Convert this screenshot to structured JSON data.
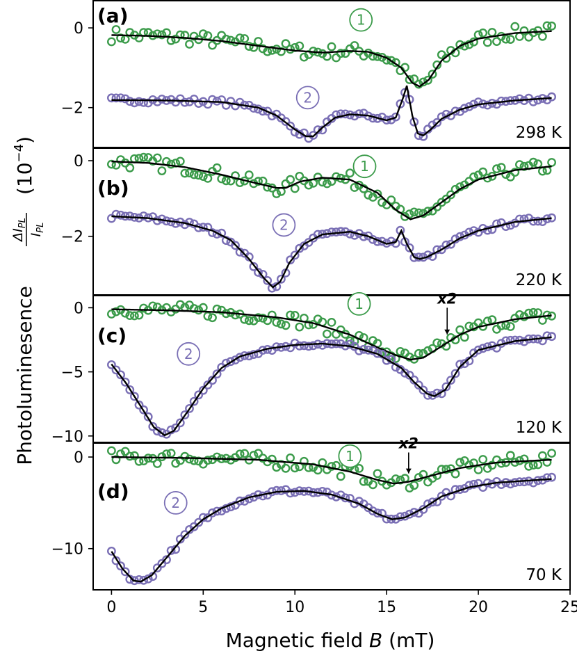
{
  "colors": {
    "green": "#3b9b4a",
    "purple": "#7a6fb5",
    "fit": "#000000"
  },
  "chart_data": {
    "type": "scatter",
    "xlabel": "Magnetic field B (mT)",
    "ylabel": "Photoluminesence ΔI_PL/I_PL (10^-4)",
    "xlim": [
      -1,
      25
    ],
    "xticks": [
      0,
      5,
      10,
      15,
      20,
      25
    ],
    "panels": [
      {
        "letter": "(a)",
        "temperature": "298 K",
        "ylim": [
          -3.0,
          0.7
        ],
        "yticks": [
          0,
          -2
        ],
        "x2": false,
        "series": [
          {
            "name": "1",
            "color": "green",
            "fit": [
              [
                0,
                -0.18
              ],
              [
                2,
                -0.2
              ],
              [
                4,
                -0.25
              ],
              [
                6,
                -0.33
              ],
              [
                8,
                -0.45
              ],
              [
                10,
                -0.57
              ],
              [
                11.5,
                -0.62
              ],
              [
                13,
                -0.58
              ],
              [
                14,
                -0.6
              ],
              [
                15,
                -0.75
              ],
              [
                15.8,
                -1.0
              ],
              [
                16.4,
                -1.38
              ],
              [
                16.8,
                -1.47
              ],
              [
                17.3,
                -1.3
              ],
              [
                18,
                -0.82
              ],
              [
                19,
                -0.45
              ],
              [
                20,
                -0.27
              ],
              [
                22,
                -0.13
              ],
              [
                24,
                -0.08
              ]
            ]
          },
          {
            "name": "2",
            "color": "purple",
            "fit": [
              [
                0,
                -1.81
              ],
              [
                3,
                -1.82
              ],
              [
                6,
                -1.86
              ],
              [
                8,
                -2.0
              ],
              [
                9,
                -2.2
              ],
              [
                10,
                -2.55
              ],
              [
                10.6,
                -2.72
              ],
              [
                11,
                -2.72
              ],
              [
                11.5,
                -2.5
              ],
              [
                12.2,
                -2.25
              ],
              [
                13,
                -2.17
              ],
              [
                14,
                -2.2
              ],
              [
                15,
                -2.32
              ],
              [
                15.5,
                -2.25
              ],
              [
                15.9,
                -1.75
              ],
              [
                16.1,
                -1.45
              ],
              [
                16.4,
                -2.2
              ],
              [
                16.7,
                -2.65
              ],
              [
                17,
                -2.7
              ],
              [
                17.4,
                -2.55
              ],
              [
                18,
                -2.28
              ],
              [
                19,
                -2.05
              ],
              [
                20,
                -1.92
              ],
              [
                22,
                -1.82
              ],
              [
                24,
                -1.76
              ]
            ]
          }
        ]
      },
      {
        "letter": "(b)",
        "temperature": "220 K",
        "ylim": [
          -3.55,
          0.35
        ],
        "yticks": [
          0,
          -2
        ],
        "x2": false,
        "series": [
          {
            "name": "1",
            "color": "green",
            "fit": [
              [
                0,
                -0.02
              ],
              [
                2,
                -0.06
              ],
              [
                4,
                -0.17
              ],
              [
                6,
                -0.37
              ],
              [
                7.5,
                -0.55
              ],
              [
                9,
                -0.72
              ],
              [
                9.5,
                -0.72
              ],
              [
                10.3,
                -0.55
              ],
              [
                11.5,
                -0.45
              ],
              [
                13,
                -0.5
              ],
              [
                14.5,
                -0.85
              ],
              [
                15.5,
                -1.3
              ],
              [
                16.3,
                -1.55
              ],
              [
                17,
                -1.45
              ],
              [
                18,
                -1.1
              ],
              [
                19,
                -0.75
              ],
              [
                20,
                -0.5
              ],
              [
                22,
                -0.25
              ],
              [
                24,
                -0.15
              ]
            ]
          },
          {
            "name": "2",
            "color": "purple",
            "fit": [
              [
                0,
                -1.47
              ],
              [
                2,
                -1.52
              ],
              [
                4,
                -1.65
              ],
              [
                5.5,
                -1.85
              ],
              [
                6.5,
                -2.1
              ],
              [
                7.5,
                -2.6
              ],
              [
                8.3,
                -3.1
              ],
              [
                8.8,
                -3.35
              ],
              [
                9.2,
                -3.2
              ],
              [
                9.7,
                -2.7
              ],
              [
                10.5,
                -2.2
              ],
              [
                11.5,
                -1.95
              ],
              [
                13,
                -1.88
              ],
              [
                14,
                -2.0
              ],
              [
                15,
                -2.2
              ],
              [
                15.5,
                -2.15
              ],
              [
                15.8,
                -1.85
              ],
              [
                16.1,
                -2.2
              ],
              [
                16.5,
                -2.55
              ],
              [
                16.8,
                -2.6
              ],
              [
                17.2,
                -2.55
              ],
              [
                18,
                -2.35
              ],
              [
                19,
                -2.05
              ],
              [
                20,
                -1.85
              ],
              [
                22,
                -1.62
              ],
              [
                24,
                -1.52
              ]
            ]
          }
        ]
      },
      {
        "letter": "(c)",
        "temperature": "120 K",
        "ylim": [
          -10.5,
          1.0
        ],
        "yticks": [
          0,
          -5,
          -10
        ],
        "x2": true,
        "series": [
          {
            "name": "1",
            "color": "green",
            "fit": [
              [
                0,
                -0.12
              ],
              [
                3,
                -0.2
              ],
              [
                6,
                -0.35
              ],
              [
                9,
                -0.75
              ],
              [
                11,
                -1.2
              ],
              [
                13,
                -2.1
              ],
              [
                14.5,
                -3.1
              ],
              [
                15.5,
                -3.7
              ],
              [
                16.3,
                -4.05
              ],
              [
                17,
                -3.9
              ],
              [
                18,
                -3.0
              ],
              [
                19,
                -2.1
              ],
              [
                20,
                -1.5
              ],
              [
                22,
                -0.9
              ],
              [
                24,
                -0.6
              ]
            ]
          },
          {
            "name": "2",
            "color": "purple",
            "fit": [
              [
                0,
                -4.4
              ],
              [
                0.8,
                -5.9
              ],
              [
                1.6,
                -7.7
              ],
              [
                2.3,
                -9.3
              ],
              [
                2.9,
                -9.95
              ],
              [
                3.4,
                -9.6
              ],
              [
                4.2,
                -8.0
              ],
              [
                5,
                -6.3
              ],
              [
                6,
                -4.7
              ],
              [
                7,
                -3.8
              ],
              [
                8.5,
                -3.2
              ],
              [
                10,
                -2.9
              ],
              [
                11.5,
                -2.8
              ],
              [
                13,
                -3.0
              ],
              [
                14.5,
                -3.6
              ],
              [
                15.8,
                -4.7
              ],
              [
                16.5,
                -5.8
              ],
              [
                17.2,
                -6.7
              ],
              [
                17.6,
                -6.9
              ],
              [
                18.2,
                -6.4
              ],
              [
                19,
                -4.6
              ],
              [
                20,
                -3.3
              ],
              [
                22,
                -2.6
              ],
              [
                24,
                -2.3
              ]
            ]
          }
        ]
      },
      {
        "letter": "(d)",
        "temperature": "70 K",
        "ylim": [
          -14.5,
          1.6
        ],
        "yticks": [
          0,
          -10
        ],
        "x2": true,
        "series": [
          {
            "name": "1",
            "color": "green",
            "fit": [
              [
                0,
                0.0
              ],
              [
                4,
                -0.1
              ],
              [
                8,
                -0.3
              ],
              [
                11,
                -0.8
              ],
              [
                13,
                -1.6
              ],
              [
                14.5,
                -2.5
              ],
              [
                15.4,
                -2.9
              ],
              [
                16.2,
                -2.7
              ],
              [
                17.5,
                -2.0
              ],
              [
                19,
                -1.2
              ],
              [
                21,
                -0.6
              ],
              [
                24,
                -0.3
              ]
            ]
          },
          {
            "name": "2",
            "color": "purple",
            "fit": [
              [
                0,
                -10.3
              ],
              [
                0.6,
                -12.2
              ],
              [
                1.2,
                -13.5
              ],
              [
                1.6,
                -13.6
              ],
              [
                2.2,
                -12.9
              ],
              [
                3,
                -11.0
              ],
              [
                4,
                -8.6
              ],
              [
                5,
                -6.8
              ],
              [
                6,
                -5.6
              ],
              [
                7.5,
                -4.4
              ],
              [
                9,
                -3.8
              ],
              [
                10.5,
                -3.7
              ],
              [
                12,
                -4.1
              ],
              [
                13.5,
                -5.1
              ],
              [
                14.5,
                -6.2
              ],
              [
                15.3,
                -6.8
              ],
              [
                16,
                -6.6
              ],
              [
                17,
                -5.6
              ],
              [
                18,
                -4.3
              ],
              [
                19.5,
                -3.3
              ],
              [
                21,
                -2.8
              ],
              [
                24,
                -2.4
              ]
            ]
          }
        ]
      }
    ]
  }
}
